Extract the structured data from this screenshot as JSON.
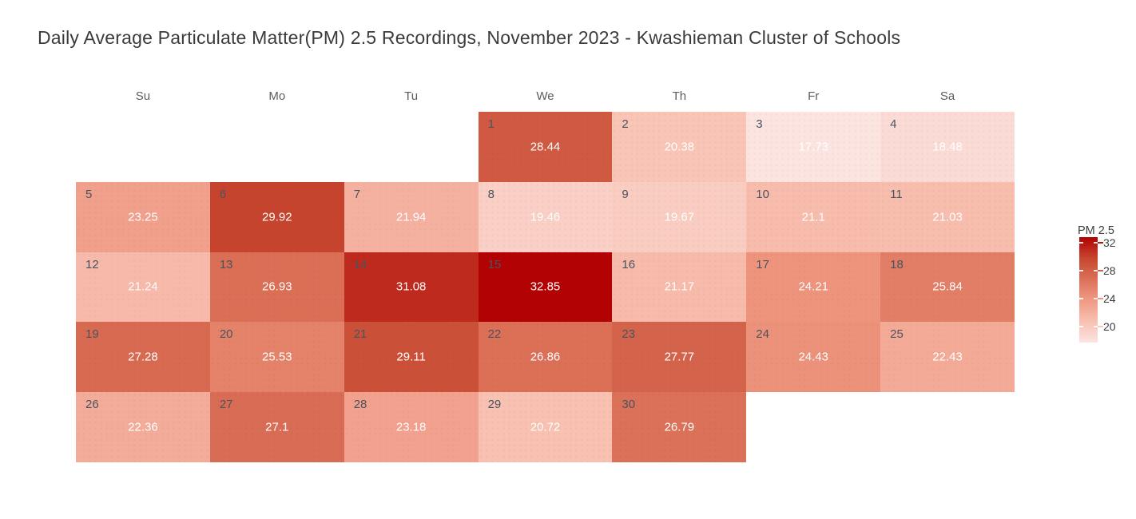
{
  "title": "Daily Average Particulate Matter(PM) 2.5 Recordings, November 2023 - Kwashieman Cluster of Schools",
  "weekday_headers": [
    "Su",
    "Mo",
    "Tu",
    "We",
    "Th",
    "Fr",
    "Sa"
  ],
  "legend": {
    "title": "PM 2.5",
    "ticks": [
      32,
      28,
      24,
      20
    ]
  },
  "chart_data": {
    "type": "heatmap",
    "subtype": "calendar-month",
    "month": "November 2023",
    "first_day_column": 3,
    "weeks": 5,
    "value_label": "PM 2.5",
    "value_min": 17.73,
    "value_max": 32.85,
    "days": [
      {
        "day": 1,
        "value": 28.44
      },
      {
        "day": 2,
        "value": 20.38
      },
      {
        "day": 3,
        "value": 17.73
      },
      {
        "day": 4,
        "value": 18.48
      },
      {
        "day": 5,
        "value": 23.25
      },
      {
        "day": 6,
        "value": 29.92
      },
      {
        "day": 7,
        "value": 21.94
      },
      {
        "day": 8,
        "value": 19.46
      },
      {
        "day": 9,
        "value": 19.67
      },
      {
        "day": 10,
        "value": 21.1
      },
      {
        "day": 11,
        "value": 21.03
      },
      {
        "day": 12,
        "value": 21.24
      },
      {
        "day": 13,
        "value": 26.93
      },
      {
        "day": 14,
        "value": 31.08
      },
      {
        "day": 15,
        "value": 32.85
      },
      {
        "day": 16,
        "value": 21.17
      },
      {
        "day": 17,
        "value": 24.21
      },
      {
        "day": 18,
        "value": 25.84
      },
      {
        "day": 19,
        "value": 27.28
      },
      {
        "day": 20,
        "value": 25.53
      },
      {
        "day": 21,
        "value": 29.11
      },
      {
        "day": 22,
        "value": 26.86
      },
      {
        "day": 23,
        "value": 27.77
      },
      {
        "day": 24,
        "value": 24.43
      },
      {
        "day": 25,
        "value": 22.43
      },
      {
        "day": 26,
        "value": 22.36
      },
      {
        "day": 27,
        "value": 27.1
      },
      {
        "day": 28,
        "value": 23.18
      },
      {
        "day": 29,
        "value": 20.72
      },
      {
        "day": 30,
        "value": 26.79
      }
    ],
    "colormap_stops": [
      {
        "value": 17.73,
        "rgb": [
          252,
          228,
          225
        ]
      },
      {
        "value": 21.1,
        "rgb": [
          247,
          188,
          172
        ]
      },
      {
        "value": 24.21,
        "rgb": [
          238,
          148,
          125
        ]
      },
      {
        "value": 28.44,
        "rgb": [
          207,
          90,
          65
        ]
      },
      {
        "value": 29.92,
        "rgb": [
          198,
          68,
          45
        ]
      },
      {
        "value": 32.85,
        "rgb": [
          178,
          2,
          4
        ]
      }
    ]
  }
}
